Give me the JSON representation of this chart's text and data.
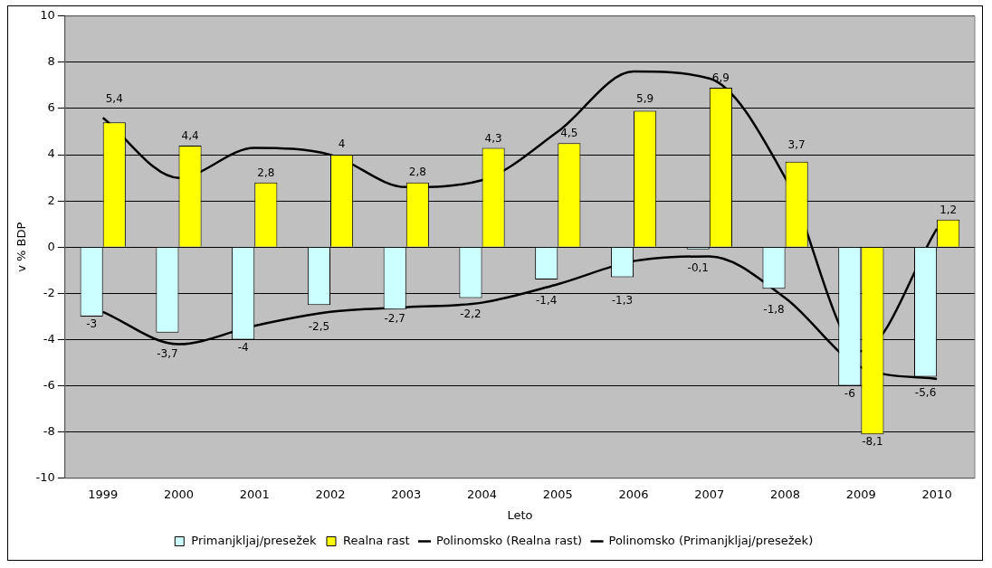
{
  "chart_data": {
    "type": "bar",
    "xlabel": "Leto",
    "ylabel": "v % BDP",
    "categories": [
      "1999",
      "2000",
      "2001",
      "2002",
      "2003",
      "2004",
      "2005",
      "2006",
      "2007",
      "2008",
      "2009",
      "2010"
    ],
    "series": [
      {
        "name": "Primanjkljaj/presežek",
        "color": "#ccffff",
        "values": [
          -3,
          -3.7,
          -4,
          -2.5,
          -2.7,
          -2.2,
          -1.4,
          -1.3,
          -0.1,
          -1.8,
          -6,
          -5.6
        ],
        "value_labels": [
          "-3",
          "-3,7",
          "-4",
          "-2,5",
          "-2,7",
          "-2,2",
          "-1,4",
          "-1,3",
          "-0,1",
          "-1,8",
          "-6",
          "-5,6"
        ]
      },
      {
        "name": "Realna rast",
        "color": "#ffff00",
        "values": [
          5.4,
          4.4,
          2.8,
          4,
          2.8,
          4.3,
          4.5,
          5.9,
          6.9,
          3.7,
          -8.1,
          1.2
        ],
        "value_labels": [
          "5,4",
          "4,4",
          "2,8",
          "4",
          "2,8",
          "4,3",
          "4,5",
          "5,9",
          "6,9",
          "3,7",
          "-8,1",
          "1,2"
        ]
      },
      {
        "name": "Polinomsko (Realna rast)",
        "type": "line",
        "color": "#000000",
        "values": [
          5.6,
          3,
          4.3,
          4,
          2.6,
          2.9,
          5,
          7.6,
          7.3,
          3,
          -4.5,
          0.8
        ]
      },
      {
        "name": "Polinomsko (Primanjkljaj/presežek)",
        "type": "line",
        "color": "#000000",
        "values": [
          -2.8,
          -4.2,
          -3.4,
          -2.8,
          -2.6,
          -2.4,
          -1.6,
          -0.6,
          -0.4,
          -2.2,
          -5.2,
          -5.7
        ]
      }
    ],
    "ylim": [
      -10,
      10
    ],
    "yticks": [
      -10,
      -8,
      -6,
      -4,
      -2,
      0,
      2,
      4,
      6,
      8,
      10
    ],
    "grid": "y",
    "legend": "bottom",
    "marker": "none",
    "line_style": "solid"
  }
}
